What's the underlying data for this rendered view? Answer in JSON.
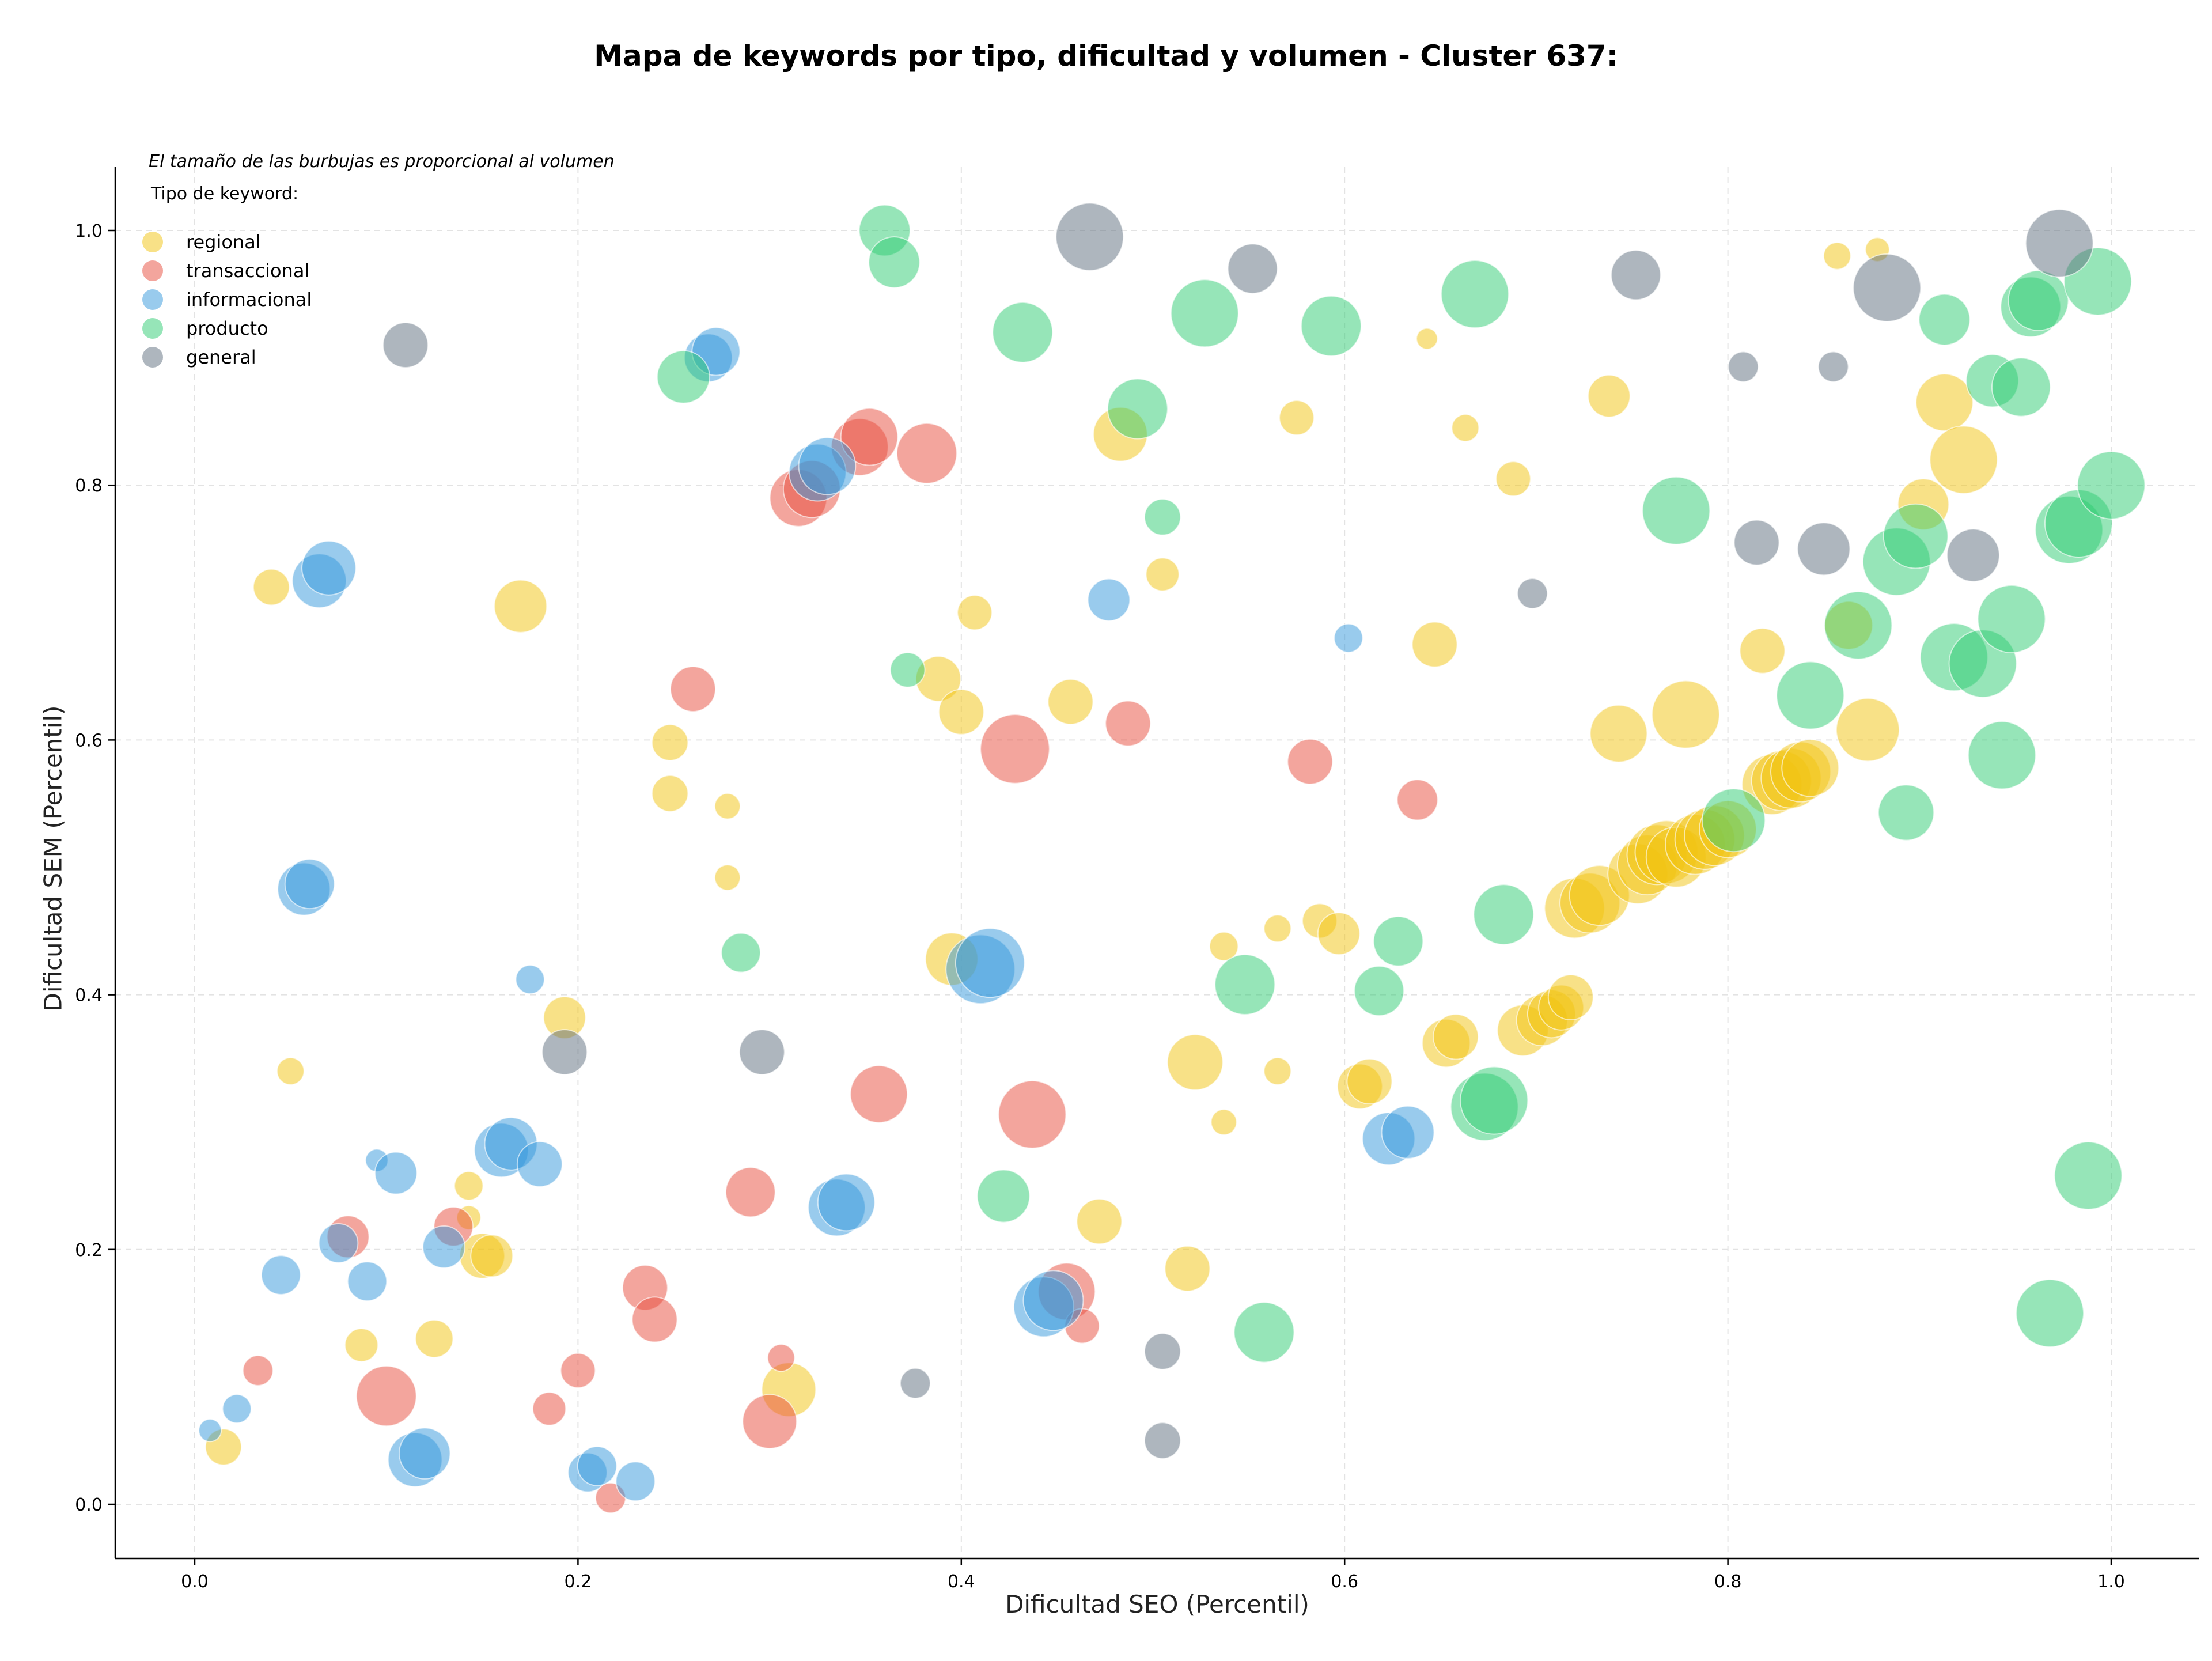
{
  "chart_data": {
    "type": "scatter",
    "title": "Mapa de keywords por tipo, dificultad y volumen - Cluster 637:",
    "xlabel": "Dificultad SEO (Percentil)",
    "ylabel": "Dificultad SEM (Percentil)",
    "xlim": [
      -0.04,
      1.05
    ],
    "ylim": [
      -0.04,
      1.05
    ],
    "xticks": [
      "0.0",
      "0.2",
      "0.4",
      "0.6",
      "0.8",
      "1.0"
    ],
    "yticks": [
      "0.0",
      "0.2",
      "0.4",
      "0.6",
      "0.8",
      "1.0"
    ],
    "grid": true,
    "legend_position": "top-left",
    "legend_note": "El tamaño de las burbujas es proporcional al volumen",
    "legend_title": "Tipo de keyword:",
    "series": [
      {
        "name": "regional",
        "color": "#F1C40F",
        "points": [
          [
            0.015,
            0.045,
            24
          ],
          [
            0.05,
            0.34,
            18
          ],
          [
            0.04,
            0.72,
            24
          ],
          [
            0.087,
            0.125,
            22
          ],
          [
            0.125,
            0.13,
            25
          ],
          [
            0.143,
            0.25,
            19
          ],
          [
            0.143,
            0.225,
            16
          ],
          [
            0.15,
            0.195,
            30
          ],
          [
            0.155,
            0.195,
            28
          ],
          [
            0.17,
            0.705,
            35
          ],
          [
            0.193,
            0.382,
            28
          ],
          [
            0.248,
            0.598,
            24
          ],
          [
            0.248,
            0.558,
            24
          ],
          [
            0.278,
            0.548,
            17
          ],
          [
            0.278,
            0.492,
            17
          ],
          [
            0.31,
            0.09,
            36
          ],
          [
            0.388,
            0.648,
            30
          ],
          [
            0.395,
            0.428,
            35
          ],
          [
            0.4,
            0.622,
            30
          ],
          [
            0.407,
            0.7,
            23
          ],
          [
            0.457,
            0.63,
            30
          ],
          [
            0.472,
            0.222,
            30
          ],
          [
            0.483,
            0.84,
            36
          ],
          [
            0.505,
            0.73,
            22
          ],
          [
            0.518,
            0.185,
            30
          ],
          [
            0.522,
            0.347,
            37
          ],
          [
            0.537,
            0.438,
            19
          ],
          [
            0.537,
            0.3,
            17
          ],
          [
            0.565,
            0.452,
            18
          ],
          [
            0.565,
            0.34,
            18
          ],
          [
            0.575,
            0.853,
            23
          ],
          [
            0.587,
            0.458,
            23
          ],
          [
            0.597,
            0.448,
            28
          ],
          [
            0.608,
            0.328,
            30
          ],
          [
            0.613,
            0.332,
            30
          ],
          [
            0.643,
            0.915,
            14
          ],
          [
            0.647,
            0.675,
            30
          ],
          [
            0.653,
            0.362,
            32
          ],
          [
            0.658,
            0.367,
            30
          ],
          [
            0.663,
            0.845,
            18
          ],
          [
            0.688,
            0.805,
            23
          ],
          [
            0.693,
            0.372,
            34
          ],
          [
            0.703,
            0.38,
            34
          ],
          [
            0.708,
            0.385,
            32
          ],
          [
            0.713,
            0.39,
            30
          ],
          [
            0.718,
            0.398,
            30
          ],
          [
            0.72,
            0.468,
            40
          ],
          [
            0.728,
            0.472,
            40
          ],
          [
            0.733,
            0.478,
            40
          ],
          [
            0.738,
            0.87,
            28
          ],
          [
            0.743,
            0.605,
            38
          ],
          [
            0.753,
            0.495,
            40
          ],
          [
            0.758,
            0.502,
            40
          ],
          [
            0.763,
            0.51,
            40
          ],
          [
            0.768,
            0.512,
            42
          ],
          [
            0.773,
            0.508,
            40
          ],
          [
            0.778,
            0.62,
            45
          ],
          [
            0.783,
            0.518,
            40
          ],
          [
            0.788,
            0.522,
            40
          ],
          [
            0.793,
            0.525,
            40
          ],
          [
            0.8,
            0.53,
            38
          ],
          [
            0.818,
            0.67,
            30
          ],
          [
            0.823,
            0.565,
            40
          ],
          [
            0.828,
            0.568,
            40
          ],
          [
            0.833,
            0.57,
            40
          ],
          [
            0.838,
            0.575,
            40
          ],
          [
            0.843,
            0.578,
            38
          ],
          [
            0.857,
            0.98,
            18
          ],
          [
            0.863,
            0.69,
            32
          ],
          [
            0.873,
            0.608,
            42
          ],
          [
            0.878,
            0.985,
            16
          ],
          [
            0.902,
            0.785,
            34
          ],
          [
            0.913,
            0.865,
            38
          ],
          [
            0.923,
            0.82,
            45
          ]
        ]
      },
      {
        "name": "transaccional",
        "color": "#E74C3C",
        "points": [
          [
            0.033,
            0.105,
            20
          ],
          [
            0.08,
            0.21,
            28
          ],
          [
            0.1,
            0.085,
            40
          ],
          [
            0.135,
            0.218,
            26
          ],
          [
            0.185,
            0.075,
            22
          ],
          [
            0.2,
            0.105,
            23
          ],
          [
            0.217,
            0.005,
            20
          ],
          [
            0.235,
            0.17,
            30
          ],
          [
            0.24,
            0.145,
            30
          ],
          [
            0.26,
            0.64,
            30
          ],
          [
            0.29,
            0.245,
            33
          ],
          [
            0.3,
            0.065,
            36
          ],
          [
            0.306,
            0.115,
            18
          ],
          [
            0.315,
            0.79,
            38
          ],
          [
            0.322,
            0.797,
            38
          ],
          [
            0.347,
            0.83,
            38
          ],
          [
            0.352,
            0.838,
            38
          ],
          [
            0.357,
            0.322,
            38
          ],
          [
            0.382,
            0.825,
            40
          ],
          [
            0.428,
            0.593,
            46
          ],
          [
            0.437,
            0.306,
            45
          ],
          [
            0.455,
            0.167,
            38
          ],
          [
            0.463,
            0.14,
            23
          ],
          [
            0.487,
            0.613,
            30
          ],
          [
            0.582,
            0.583,
            30
          ],
          [
            0.638,
            0.553,
            27
          ]
        ]
      },
      {
        "name": "informacional",
        "color": "#3498DB",
        "points": [
          [
            0.008,
            0.058,
            15
          ],
          [
            0.022,
            0.075,
            19
          ],
          [
            0.045,
            0.18,
            26
          ],
          [
            0.057,
            0.483,
            35
          ],
          [
            0.06,
            0.487,
            33
          ],
          [
            0.065,
            0.725,
            36
          ],
          [
            0.07,
            0.735,
            36
          ],
          [
            0.075,
            0.205,
            26
          ],
          [
            0.09,
            0.175,
            26
          ],
          [
            0.095,
            0.27,
            15
          ],
          [
            0.105,
            0.26,
            28
          ],
          [
            0.115,
            0.035,
            36
          ],
          [
            0.12,
            0.04,
            34
          ],
          [
            0.13,
            0.202,
            28
          ],
          [
            0.16,
            0.278,
            36
          ],
          [
            0.165,
            0.283,
            35
          ],
          [
            0.175,
            0.412,
            19
          ],
          [
            0.18,
            0.267,
            30
          ],
          [
            0.205,
            0.025,
            26
          ],
          [
            0.21,
            0.03,
            26
          ],
          [
            0.23,
            0.018,
            26
          ],
          [
            0.268,
            0.9,
            32
          ],
          [
            0.272,
            0.905,
            32
          ],
          [
            0.325,
            0.81,
            38
          ],
          [
            0.33,
            0.815,
            38
          ],
          [
            0.335,
            0.233,
            38
          ],
          [
            0.34,
            0.237,
            38
          ],
          [
            0.41,
            0.42,
            46
          ],
          [
            0.415,
            0.425,
            46
          ],
          [
            0.443,
            0.155,
            40
          ],
          [
            0.448,
            0.16,
            40
          ],
          [
            0.477,
            0.71,
            28
          ],
          [
            0.602,
            0.68,
            19
          ],
          [
            0.623,
            0.287,
            35
          ],
          [
            0.633,
            0.292,
            35
          ]
        ]
      },
      {
        "name": "producto",
        "color": "#2ECC71",
        "points": [
          [
            0.255,
            0.885,
            35
          ],
          [
            0.285,
            0.433,
            26
          ],
          [
            0.36,
            1.0,
            34
          ],
          [
            0.365,
            0.975,
            34
          ],
          [
            0.372,
            0.655,
            23
          ],
          [
            0.422,
            0.242,
            35
          ],
          [
            0.432,
            0.92,
            40
          ],
          [
            0.492,
            0.86,
            40
          ],
          [
            0.505,
            0.775,
            24
          ],
          [
            0.527,
            0.935,
            45
          ],
          [
            0.548,
            0.408,
            40
          ],
          [
            0.558,
            0.135,
            40
          ],
          [
            0.593,
            0.925,
            40
          ],
          [
            0.618,
            0.403,
            33
          ],
          [
            0.628,
            0.442,
            33
          ],
          [
            0.668,
            0.95,
            45
          ],
          [
            0.673,
            0.312,
            45
          ],
          [
            0.678,
            0.317,
            45
          ],
          [
            0.683,
            0.463,
            40
          ],
          [
            0.773,
            0.78,
            45
          ],
          [
            0.803,
            0.537,
            42
          ],
          [
            0.843,
            0.635,
            45
          ],
          [
            0.868,
            0.69,
            45
          ],
          [
            0.888,
            0.74,
            45
          ],
          [
            0.893,
            0.543,
            37
          ],
          [
            0.898,
            0.76,
            43
          ],
          [
            0.913,
            0.93,
            34
          ],
          [
            0.918,
            0.665,
            45
          ],
          [
            0.933,
            0.66,
            45
          ],
          [
            0.938,
            0.882,
            35
          ],
          [
            0.943,
            0.588,
            45
          ],
          [
            0.948,
            0.695,
            45
          ],
          [
            0.953,
            0.877,
            39
          ],
          [
            0.958,
            0.94,
            40
          ],
          [
            0.962,
            0.945,
            40
          ],
          [
            0.968,
            0.15,
            45
          ],
          [
            0.978,
            0.765,
            45
          ],
          [
            0.983,
            0.77,
            45
          ],
          [
            0.988,
            0.258,
            45
          ],
          [
            0.993,
            0.96,
            45
          ],
          [
            1.0,
            0.8,
            45
          ]
        ]
      },
      {
        "name": "general",
        "color": "#5D6D7E",
        "points": [
          [
            0.11,
            0.91,
            30
          ],
          [
            0.193,
            0.355,
            30
          ],
          [
            0.296,
            0.355,
            30
          ],
          [
            0.376,
            0.095,
            20
          ],
          [
            0.467,
            0.995,
            45
          ],
          [
            0.505,
            0.12,
            24
          ],
          [
            0.505,
            0.05,
            24
          ],
          [
            0.552,
            0.97,
            33
          ],
          [
            0.698,
            0.715,
            20
          ],
          [
            0.752,
            0.965,
            33
          ],
          [
            0.808,
            0.893,
            20
          ],
          [
            0.815,
            0.755,
            30
          ],
          [
            0.855,
            0.893,
            20
          ],
          [
            0.85,
            0.75,
            35
          ],
          [
            0.883,
            0.955,
            45
          ],
          [
            0.928,
            0.745,
            35
          ],
          [
            0.973,
            0.99,
            45
          ]
        ]
      }
    ]
  }
}
